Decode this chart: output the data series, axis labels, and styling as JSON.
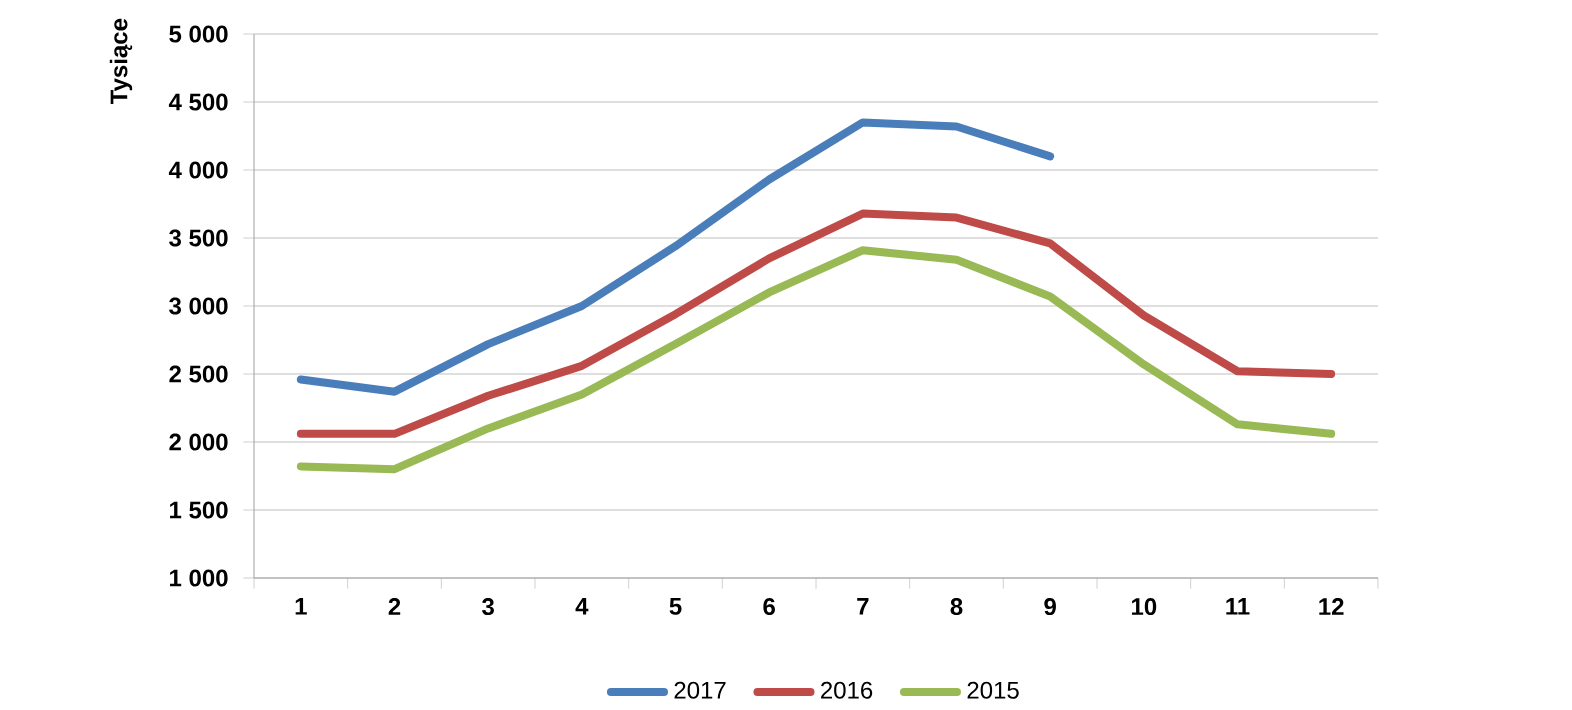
{
  "chart_data": {
    "type": "line",
    "ylabel": "Tysiące",
    "categories": [
      "1",
      "2",
      "3",
      "4",
      "5",
      "6",
      "7",
      "8",
      "9",
      "10",
      "11",
      "12"
    ],
    "series": [
      {
        "name": "2017",
        "color": "#4a7ebb",
        "values": [
          2460,
          2370,
          2720,
          3000,
          3440,
          3930,
          4350,
          4320,
          4100,
          null,
          null,
          null
        ]
      },
      {
        "name": "2016",
        "color": "#be4b48",
        "values": [
          2060,
          2060,
          2340,
          2560,
          2940,
          3350,
          3680,
          3650,
          3460,
          2930,
          2520,
          2500
        ]
      },
      {
        "name": "2015",
        "color": "#98b954",
        "values": [
          1820,
          1800,
          2100,
          2350,
          2720,
          3100,
          3410,
          3340,
          3070,
          2570,
          2130,
          2060
        ]
      }
    ],
    "ylim": [
      1000,
      5000
    ],
    "yticks": [
      {
        "value": 1000,
        "label": "1 000"
      },
      {
        "value": 1500,
        "label": "1 500"
      },
      {
        "value": 2000,
        "label": "2 000"
      },
      {
        "value": 2500,
        "label": "2 500"
      },
      {
        "value": 3000,
        "label": "3 000"
      },
      {
        "value": 3500,
        "label": "3 500"
      },
      {
        "value": 4000,
        "label": "4 000"
      },
      {
        "value": 4500,
        "label": "4 500"
      },
      {
        "value": 5000,
        "label": "5 000"
      }
    ],
    "grid": "y",
    "legend": "bottom",
    "marker": "none",
    "line_style": "solid"
  }
}
